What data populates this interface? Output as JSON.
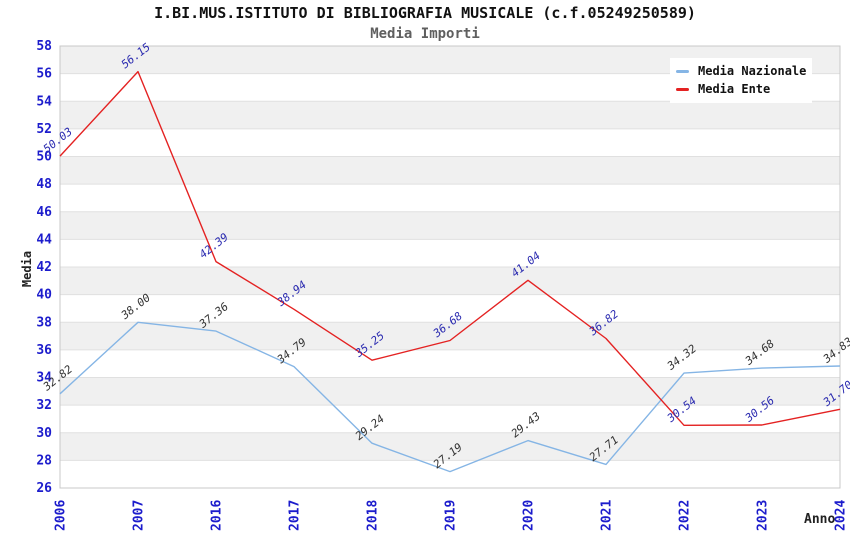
{
  "title": "I.BI.MUS.ISTITUTO DI BIBLIOGRAFIA MUSICALE (c.f.05249250589)",
  "subtitle": "Media Importi",
  "colors": {
    "media_nazionale_line": "#85b5e5",
    "media_ente_line": "#e42222",
    "axis_tick_text": "#1c1ccc",
    "ente_value_label": "#2b2bb0",
    "nazionale_value_label": "#333333",
    "band_fill": "#f0f0f0",
    "grid_line": "#e0e0e0",
    "plot_border": "#c8c8c8",
    "subtitle_text": "#5f5f5f"
  },
  "chart_data": {
    "type": "line",
    "title": "I.BI.MUS.ISTITUTO DI BIBLIOGRAFIA MUSICALE (c.f.05249250589)",
    "subtitle": "Media Importi",
    "xlabel": "Anno",
    "ylabel": "Media",
    "categories": [
      "2006",
      "2007",
      "2016",
      "2017",
      "2018",
      "2019",
      "2020",
      "2021",
      "2022",
      "2023",
      "2024"
    ],
    "series": [
      {
        "name": "Media Nazionale",
        "color": "#85b5e5",
        "label_color": "#333333",
        "values": [
          32.82,
          38.0,
          37.36,
          34.79,
          29.24,
          27.19,
          29.43,
          27.71,
          34.32,
          34.68,
          34.83
        ]
      },
      {
        "name": "Media Ente",
        "color": "#e42222",
        "label_color": "#2b2bb0",
        "values": [
          50.03,
          56.15,
          42.39,
          38.94,
          35.25,
          36.68,
          41.04,
          36.82,
          30.54,
          30.56,
          31.7
        ]
      }
    ],
    "ylim": [
      26,
      58
    ],
    "ytick_step": 2,
    "grid": "horizontal-bands",
    "legend_position": "top-right",
    "value_labels": "shown-rotated"
  }
}
